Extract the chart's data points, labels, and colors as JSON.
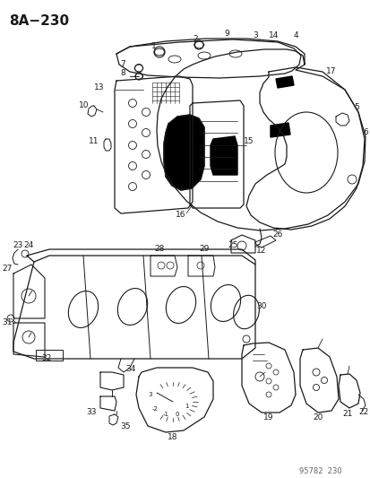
{
  "title": "8A−230",
  "watermark": "95782  230",
  "bg_color": "#ffffff",
  "line_color": "#1a1a1a",
  "title_fontsize": 11,
  "label_fontsize": 6.5,
  "watermark_fontsize": 6,
  "fig_w": 4.14,
  "fig_h": 5.33,
  "dpi": 100
}
